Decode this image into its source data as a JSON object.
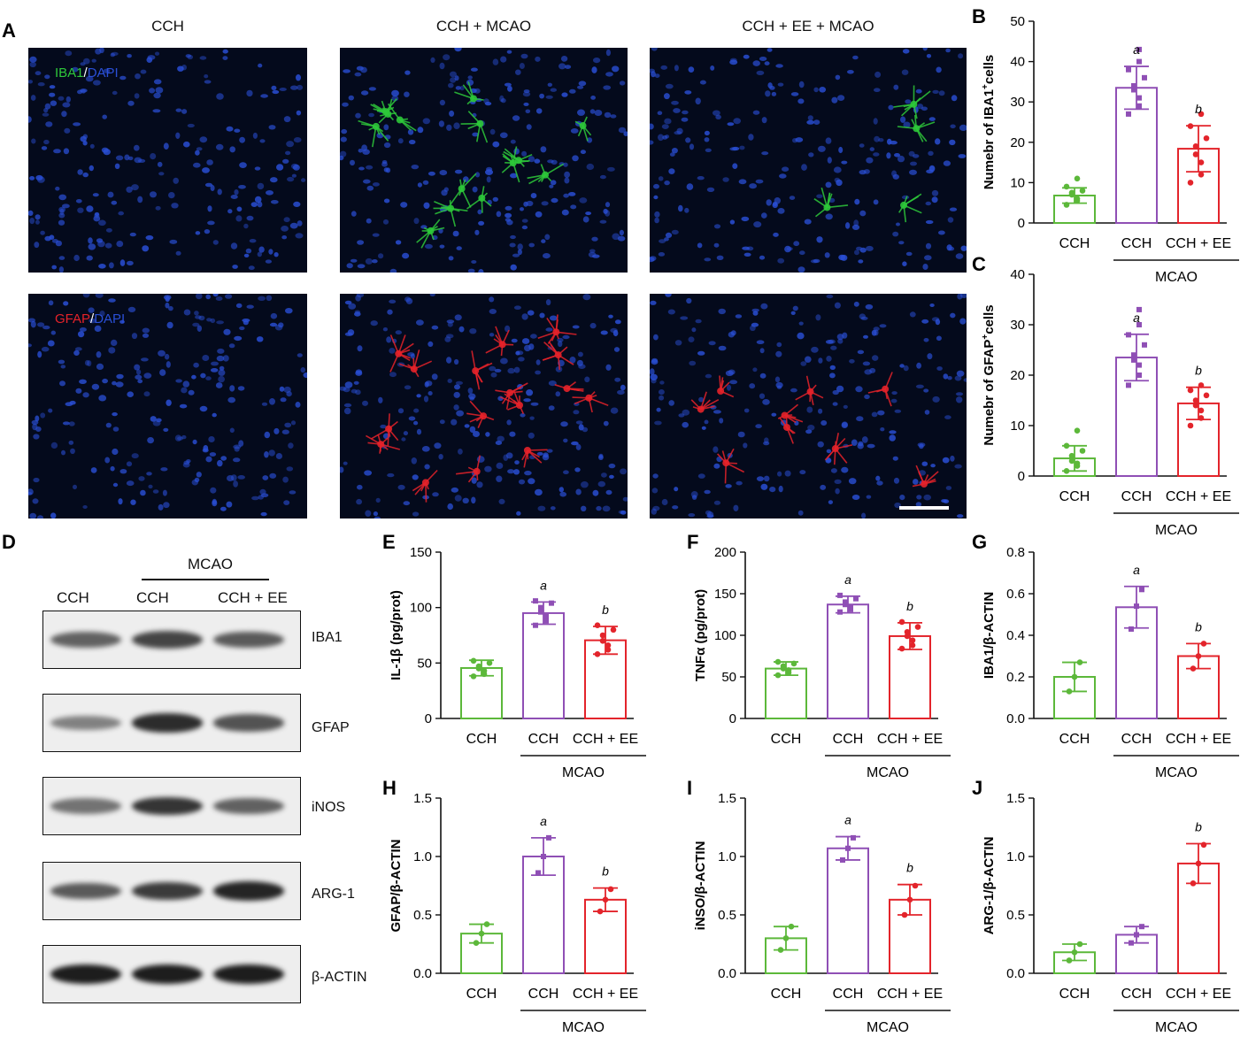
{
  "panel_labels": {
    "A": "A",
    "B": "B",
    "C": "C",
    "D": "D",
    "E": "E",
    "F": "F",
    "G": "G",
    "H": "H",
    "I": "I",
    "J": "J"
  },
  "microscopy": {
    "columns": [
      "CCH",
      "CCH + MCAO",
      "CCH + EE + MCAO"
    ],
    "row1_label": {
      "marker": "IBA1",
      "sep": "/",
      "dapi": "DAPI"
    },
    "row2_label": {
      "marker": "GFAP",
      "sep": "/",
      "dapi": "DAPI"
    },
    "colors": {
      "dapi": "#2a4fd6",
      "iba1": "#2ec83a",
      "gfap": "#e5222a",
      "background": "#040a1c"
    }
  },
  "western_blot": {
    "group_header": "MCAO",
    "columns": [
      "CCH",
      "CCH",
      "CCH + EE"
    ],
    "bands": [
      "IBA1",
      "GFAP",
      "iNOS",
      "ARG-1",
      "β-ACTIN"
    ],
    "band_intensity": [
      [
        0.55,
        0.75,
        0.6
      ],
      [
        0.35,
        0.9,
        0.65
      ],
      [
        0.45,
        0.85,
        0.55
      ],
      [
        0.6,
        0.8,
        0.95
      ],
      [
        1.0,
        1.0,
        1.0
      ]
    ]
  },
  "colors": {
    "CCH": "#5cb83a",
    "MCAO": "#8f4fb5",
    "EE": "#e3242b"
  },
  "chart_data": [
    {
      "panel": "B",
      "type": "bar",
      "ylabel_pre": "Numebr of IBA1",
      "ylabel_sup": "+",
      "ylabel_post": "cells",
      "categories": [
        "CCH",
        "CCH",
        "CCH + EE"
      ],
      "group_label": "MCAO",
      "values": [
        6.8,
        33.5,
        18.4
      ],
      "errors": [
        1.9,
        5.3,
        5.7
      ],
      "ylim": [
        0,
        50
      ],
      "yticks": [
        0,
        10,
        20,
        30,
        40,
        50
      ],
      "annotations": [
        "",
        "a",
        "b"
      ],
      "points": [
        [
          4.5,
          5.5,
          6,
          7,
          7.5,
          8,
          9,
          11
        ],
        [
          27,
          29,
          31,
          33,
          34,
          36,
          38,
          40,
          43
        ],
        [
          10,
          12,
          15,
          17,
          19,
          21,
          24,
          27
        ]
      ]
    },
    {
      "panel": "C",
      "type": "bar",
      "ylabel_pre": "Numebr of GFAP",
      "ylabel_sup": "+",
      "ylabel_post": "cells",
      "categories": [
        "CCH",
        "CCH",
        "CCH + EE"
      ],
      "group_label": "MCAO",
      "values": [
        3.5,
        23.5,
        14.4
      ],
      "errors": [
        2.5,
        4.6,
        3.2
      ],
      "ylim": [
        0,
        40
      ],
      "yticks": [
        0,
        10,
        20,
        30,
        40
      ],
      "annotations": [
        "",
        "a",
        "b"
      ],
      "points": [
        [
          1,
          2,
          2.5,
          3,
          4,
          5,
          6,
          9
        ],
        [
          18,
          20,
          22,
          23,
          24,
          26,
          28,
          30,
          33
        ],
        [
          10,
          11.5,
          13,
          14,
          15,
          16,
          17,
          18
        ]
      ]
    },
    {
      "panel": "E",
      "type": "bar",
      "ylabel": "IL-1β (pg/prot)",
      "categories": [
        "CCH",
        "CCH",
        "CCH + EE"
      ],
      "group_label": "MCAO",
      "values": [
        45.5,
        95,
        70.5
      ],
      "errors": [
        7,
        10,
        12.5
      ],
      "ylim": [
        0,
        150
      ],
      "yticks": [
        0,
        50,
        100,
        150
      ],
      "annotations": [
        "",
        "a",
        "b"
      ],
      "points": [
        [
          38,
          40,
          43,
          45,
          47,
          50,
          52
        ],
        [
          84,
          88,
          92,
          96,
          100,
          104,
          106
        ],
        [
          58,
          62,
          66,
          70,
          75,
          80,
          84
        ]
      ]
    },
    {
      "panel": "F",
      "type": "bar",
      "ylabel": "TNFα (pg/prot)",
      "categories": [
        "CCH",
        "CCH",
        "CCH + EE"
      ],
      "group_label": "MCAO",
      "values": [
        60,
        137,
        99
      ],
      "errors": [
        8,
        10,
        16
      ],
      "ylim": [
        0,
        200
      ],
      "yticks": [
        0,
        50,
        100,
        150,
        200
      ],
      "annotations": [
        "",
        "a",
        "b"
      ],
      "points": [
        [
          52,
          55,
          58,
          60,
          63,
          66,
          68
        ],
        [
          128,
          131,
          134,
          137,
          140,
          144,
          148
        ],
        [
          84,
          88,
          94,
          99,
          104,
          110,
          116
        ]
      ]
    },
    {
      "panel": "G",
      "type": "bar",
      "ylabel": "IBA1/β-ACTIN",
      "categories": [
        "CCH",
        "CCH",
        "CCH + EE"
      ],
      "group_label": "MCAO",
      "values": [
        0.2,
        0.535,
        0.3
      ],
      "errors": [
        0.07,
        0.1,
        0.06
      ],
      "ylim": [
        0,
        0.8
      ],
      "yticks": [
        0.0,
        0.2,
        0.4,
        0.6,
        0.8
      ],
      "annotations": [
        "",
        "a",
        "b"
      ],
      "points": [
        [
          0.13,
          0.2,
          0.27
        ],
        [
          0.43,
          0.54,
          0.62
        ],
        [
          0.24,
          0.3,
          0.36
        ]
      ]
    },
    {
      "panel": "H",
      "type": "bar",
      "ylabel": "GFAP/β-ACTIN",
      "categories": [
        "CCH",
        "CCH",
        "CCH + EE"
      ],
      "group_label": "MCAO",
      "values": [
        0.34,
        1.0,
        0.63
      ],
      "errors": [
        0.08,
        0.16,
        0.1
      ],
      "ylim": [
        0,
        1.5
      ],
      "yticks": [
        0.0,
        0.5,
        1.0,
        1.5
      ],
      "annotations": [
        "",
        "a",
        "b"
      ],
      "points": [
        [
          0.26,
          0.34,
          0.42
        ],
        [
          0.86,
          1.0,
          1.16
        ],
        [
          0.53,
          0.63,
          0.72
        ]
      ]
    },
    {
      "panel": "I",
      "type": "bar",
      "ylabel": "iNSO/β-ACTIN",
      "categories": [
        "CCH",
        "CCH",
        "CCH + EE"
      ],
      "group_label": "MCAO",
      "values": [
        0.3,
        1.07,
        0.63
      ],
      "errors": [
        0.1,
        0.1,
        0.13
      ],
      "ylim": [
        0,
        1.5
      ],
      "yticks": [
        0.0,
        0.5,
        1.0,
        1.5
      ],
      "annotations": [
        "",
        "a",
        "b"
      ],
      "points": [
        [
          0.2,
          0.3,
          0.4
        ],
        [
          0.97,
          1.07,
          1.16
        ],
        [
          0.5,
          0.63,
          0.75
        ]
      ]
    },
    {
      "panel": "J",
      "type": "bar",
      "ylabel": "ARG-1/β-ACTIN",
      "categories": [
        "CCH",
        "CCH",
        "CCH + EE"
      ],
      "group_label": "MCAO",
      "values": [
        0.18,
        0.33,
        0.94
      ],
      "errors": [
        0.07,
        0.07,
        0.17
      ],
      "ylim": [
        0,
        1.5
      ],
      "yticks": [
        0.0,
        0.5,
        1.0,
        1.5
      ],
      "annotations": [
        "",
        "",
        "b"
      ],
      "points": [
        [
          0.11,
          0.18,
          0.25
        ],
        [
          0.26,
          0.33,
          0.4
        ],
        [
          0.77,
          0.94,
          1.1
        ]
      ]
    }
  ]
}
